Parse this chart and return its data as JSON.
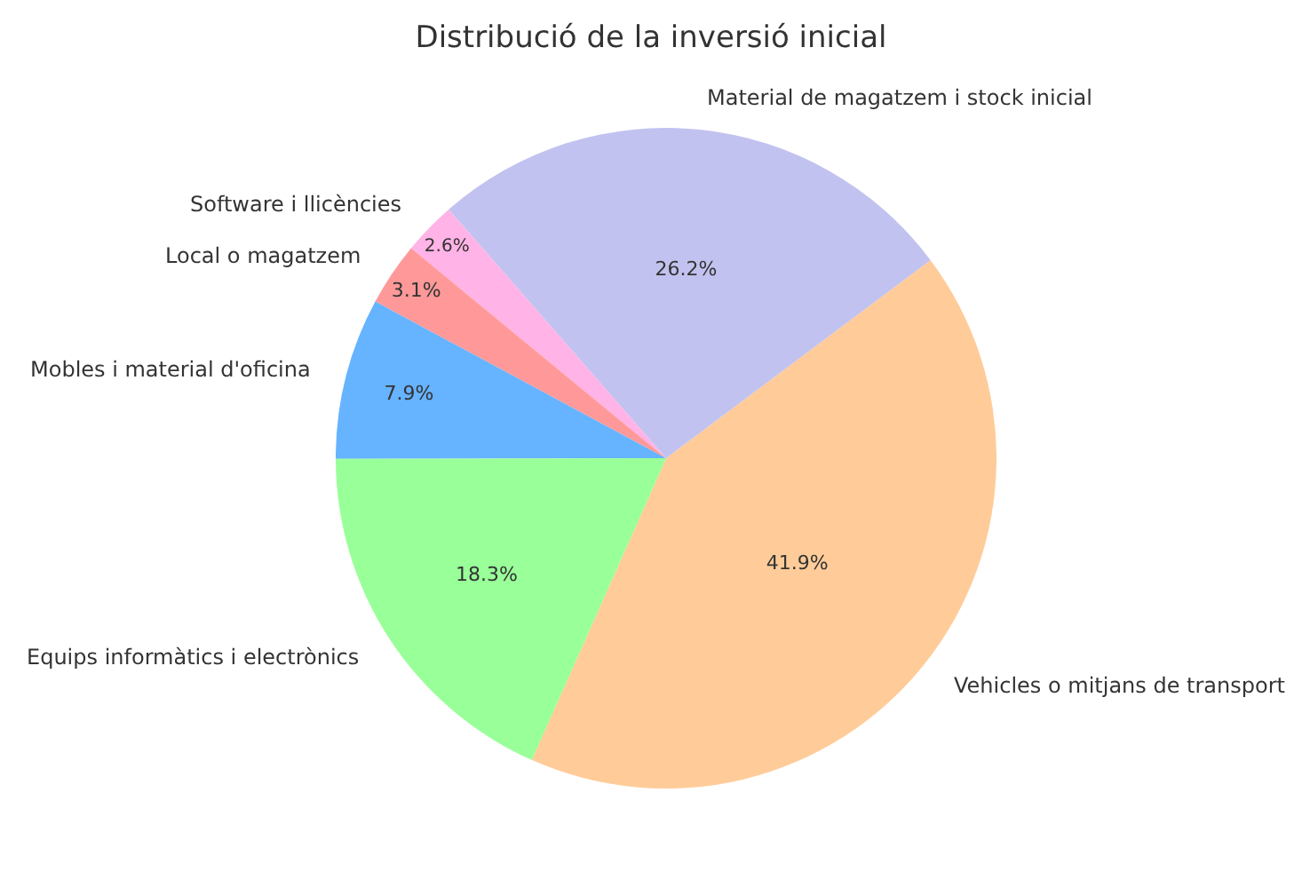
{
  "chart_data": {
    "type": "pie",
    "title": "Distribució de la inversió inicial",
    "categories": [
      "Vehicles o mitjans de transport",
      "Material de magatzem i stock inicial",
      "Software i llicències",
      "Local o magatzem",
      "Mobles i material d'oficina",
      "Equips informàtics i electrònics"
    ],
    "values": [
      41.9,
      26.2,
      2.6,
      3.1,
      7.9,
      18.3
    ],
    "value_labels": [
      "41.9%",
      "26.2%",
      "2.6%",
      "3.1%",
      "7.9%",
      "18.3%"
    ],
    "colors": [
      "#ffcc99",
      "#c2c2f0",
      "#ffb3e6",
      "#ff9999",
      "#66b3ff",
      "#99ff99"
    ]
  }
}
